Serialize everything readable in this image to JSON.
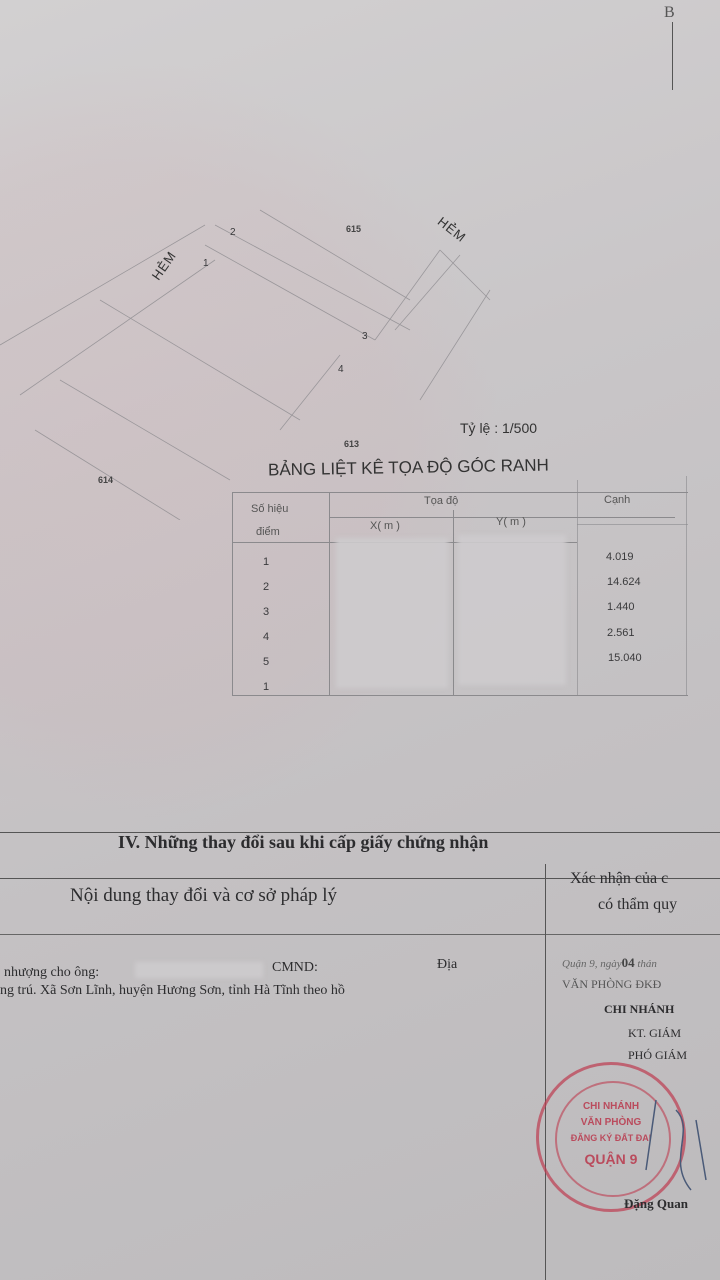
{
  "corner_mark": "B",
  "map": {
    "alley_label_left": "HẺM",
    "alley_label_right": "HẺM",
    "points": [
      "1",
      "2",
      "3",
      "4"
    ],
    "parcels": [
      "615",
      "613",
      "614"
    ],
    "scale": "Tỷ lệ : 1/500"
  },
  "coord_table": {
    "title": "BẢNG LIỆT KÊ TỌA ĐỘ GÓC RANH",
    "headers": {
      "point_id_line1": "Số hiệu",
      "point_id_line2": "điểm",
      "coords": "Tọa độ",
      "x": "X( m )",
      "y": "Y( m )",
      "edge": "Cạnh"
    },
    "rows": [
      {
        "point": "1",
        "edge": "4.019"
      },
      {
        "point": "2",
        "edge": "14.624"
      },
      {
        "point": "3",
        "edge": "1.440"
      },
      {
        "point": "4",
        "edge": "2.561"
      },
      {
        "point": "5",
        "edge": "15.040"
      },
      {
        "point": "1",
        "edge": ""
      }
    ]
  },
  "changes_section": {
    "heading": "IV. Những thay đổi sau khi cấp giấy chứng nhận",
    "col_content": "Nội dung thay đổi và cơ sở pháp lý",
    "col_confirm_line1": "Xác nhận của c",
    "col_confirm_line2": "có thẩm quy",
    "entry_line1_a": "nhượng cho ông:",
    "entry_line1_b": "CMND:",
    "entry_line1_c": "Địa",
    "entry_line2": "ng trú. Xã Sơn Lĩnh, huyện Hương Sơn, tỉnh Hà Tĩnh theo hồ",
    "confirm_date": "Quận 9, ngày",
    "confirm_day": "04",
    "confirm_month_word": "thán",
    "office": "VĂN PHÒNG ĐKĐ",
    "branch": "CHI NHÁNH",
    "kt": "KT. GIÁM",
    "deputy": "PHÓ GIÁM",
    "signer": "Đặng Quan",
    "stamp_text": [
      "CHI NHÁNH",
      "VĂN PHÒNG",
      "ĐĂNG KÝ ĐẤT ĐAI",
      "QUẬN 9"
    ]
  }
}
